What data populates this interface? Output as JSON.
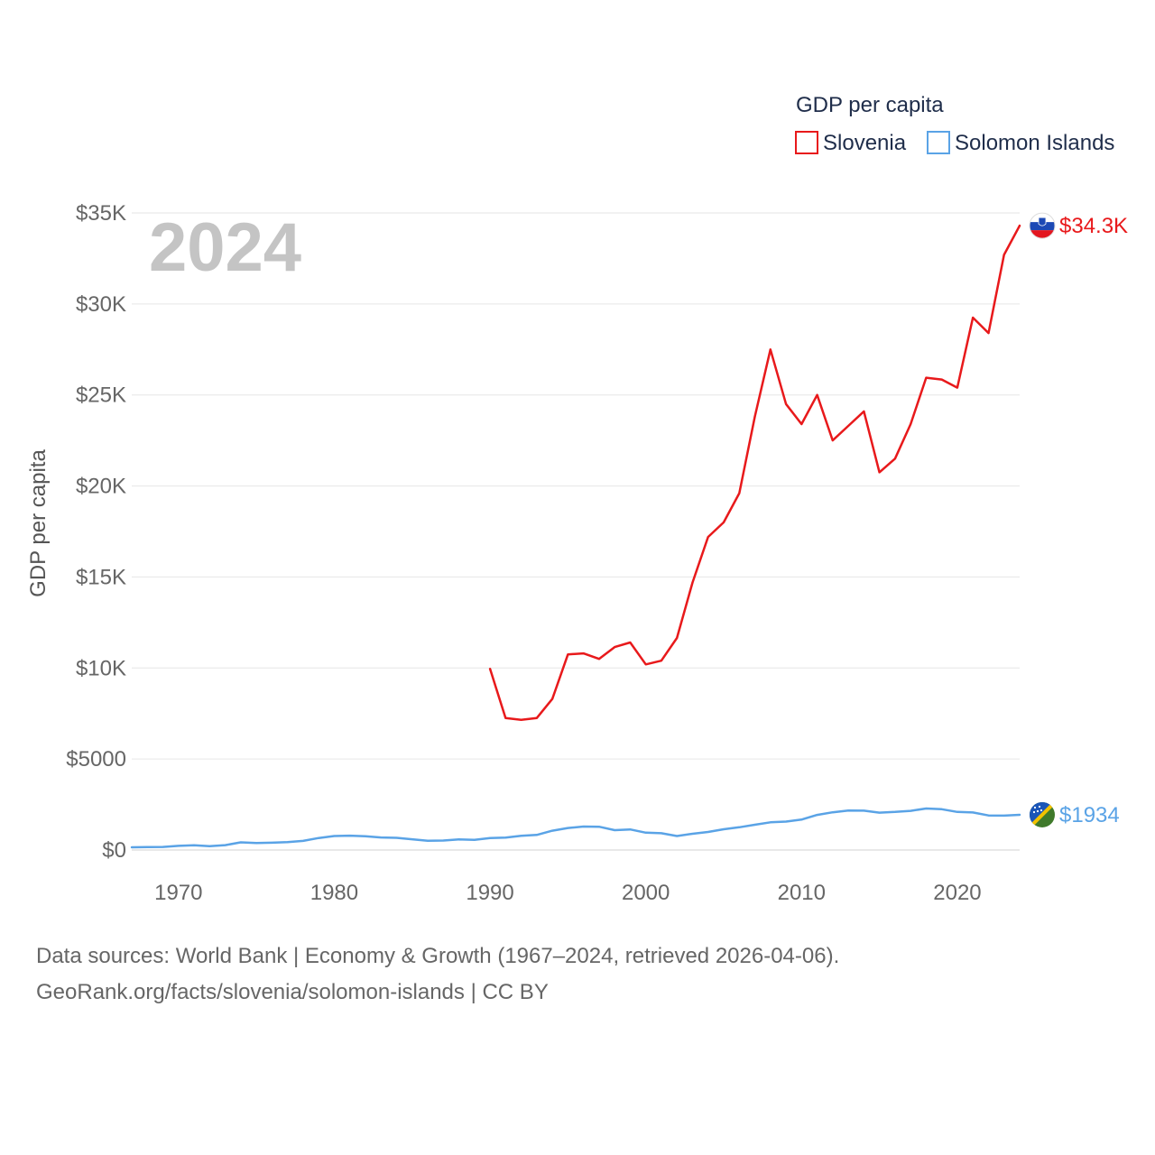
{
  "chart_data": {
    "type": "line",
    "title": "GDP per capita",
    "ylabel": "GDP per capita",
    "xlabel": "",
    "watermark_year": "2024",
    "xlim": [
      1967,
      2024
    ],
    "ylim": [
      0,
      35000
    ],
    "x_ticks": [
      1970,
      1980,
      1990,
      2000,
      2010,
      2020
    ],
    "x_tick_labels": [
      "1970",
      "1980",
      "1990",
      "2000",
      "2010",
      "2020"
    ],
    "y_ticks": [
      0,
      5000,
      10000,
      15000,
      20000,
      25000,
      30000,
      35000
    ],
    "y_tick_labels": [
      "$0",
      "$5000",
      "$10K",
      "$15K",
      "$20K",
      "$25K",
      "$30K",
      "$35K"
    ],
    "legend_title": "GDP per capita",
    "grid": true,
    "series": [
      {
        "name": "Slovenia",
        "color": "#e8191b",
        "end_label": "$34.3K",
        "points": [
          [
            1990,
            9950
          ],
          [
            1991,
            7250
          ],
          [
            1992,
            7150
          ],
          [
            1993,
            7250
          ],
          [
            1994,
            8300
          ],
          [
            1995,
            10750
          ],
          [
            1996,
            10800
          ],
          [
            1997,
            10500
          ],
          [
            1998,
            11150
          ],
          [
            1999,
            11400
          ],
          [
            2000,
            10200
          ],
          [
            2001,
            10400
          ],
          [
            2002,
            11650
          ],
          [
            2003,
            14700
          ],
          [
            2004,
            17200
          ],
          [
            2005,
            18000
          ],
          [
            2006,
            19600
          ],
          [
            2007,
            23800
          ],
          [
            2008,
            27500
          ],
          [
            2009,
            24500
          ],
          [
            2010,
            23400
          ],
          [
            2011,
            25000
          ],
          [
            2012,
            22500
          ],
          [
            2013,
            23300
          ],
          [
            2014,
            24100
          ],
          [
            2015,
            20750
          ],
          [
            2016,
            21500
          ],
          [
            2017,
            23400
          ],
          [
            2018,
            25950
          ],
          [
            2019,
            25850
          ],
          [
            2020,
            25400
          ],
          [
            2021,
            29250
          ],
          [
            2022,
            28400
          ],
          [
            2023,
            32700
          ],
          [
            2024,
            34300
          ]
        ]
      },
      {
        "name": "Solomon Islands",
        "color": "#5aa3e6",
        "end_label": "$1934",
        "points": [
          [
            1967,
            150
          ],
          [
            1968,
            160
          ],
          [
            1969,
            170
          ],
          [
            1970,
            230
          ],
          [
            1971,
            260
          ],
          [
            1972,
            210
          ],
          [
            1973,
            270
          ],
          [
            1974,
            420
          ],
          [
            1975,
            380
          ],
          [
            1976,
            400
          ],
          [
            1977,
            430
          ],
          [
            1978,
            500
          ],
          [
            1979,
            660
          ],
          [
            1980,
            770
          ],
          [
            1981,
            790
          ],
          [
            1982,
            760
          ],
          [
            1983,
            690
          ],
          [
            1984,
            670
          ],
          [
            1985,
            590
          ],
          [
            1986,
            510
          ],
          [
            1987,
            520
          ],
          [
            1988,
            580
          ],
          [
            1989,
            560
          ],
          [
            1990,
            660
          ],
          [
            1991,
            680
          ],
          [
            1992,
            780
          ],
          [
            1993,
            830
          ],
          [
            1994,
            1060
          ],
          [
            1995,
            1210
          ],
          [
            1996,
            1290
          ],
          [
            1997,
            1280
          ],
          [
            1998,
            1090
          ],
          [
            1999,
            1130
          ],
          [
            2000,
            950
          ],
          [
            2001,
            920
          ],
          [
            2002,
            770
          ],
          [
            2003,
            890
          ],
          [
            2004,
            990
          ],
          [
            2005,
            1140
          ],
          [
            2006,
            1250
          ],
          [
            2007,
            1390
          ],
          [
            2008,
            1520
          ],
          [
            2009,
            1560
          ],
          [
            2010,
            1670
          ],
          [
            2011,
            1930
          ],
          [
            2012,
            2070
          ],
          [
            2013,
            2170
          ],
          [
            2014,
            2160
          ],
          [
            2015,
            2050
          ],
          [
            2016,
            2090
          ],
          [
            2017,
            2150
          ],
          [
            2018,
            2280
          ],
          [
            2019,
            2240
          ],
          [
            2020,
            2090
          ],
          [
            2021,
            2060
          ],
          [
            2022,
            1900
          ],
          [
            2023,
            1890
          ],
          [
            2024,
            1934
          ]
        ]
      }
    ]
  },
  "source": {
    "line1": "Data sources: World Bank | Economy & Growth (1967–2024, retrieved 2026-04-06).",
    "line2": "GeoRank.org/facts/slovenia/solomon-islands | CC BY"
  },
  "flags": {
    "slovenia": {
      "white": "#ffffff",
      "blue": "#1c49b5",
      "red": "#e3161f"
    },
    "solomon": {
      "blue": "#1a55b8",
      "green": "#3f7a2b",
      "yellow": "#f2c200"
    }
  }
}
